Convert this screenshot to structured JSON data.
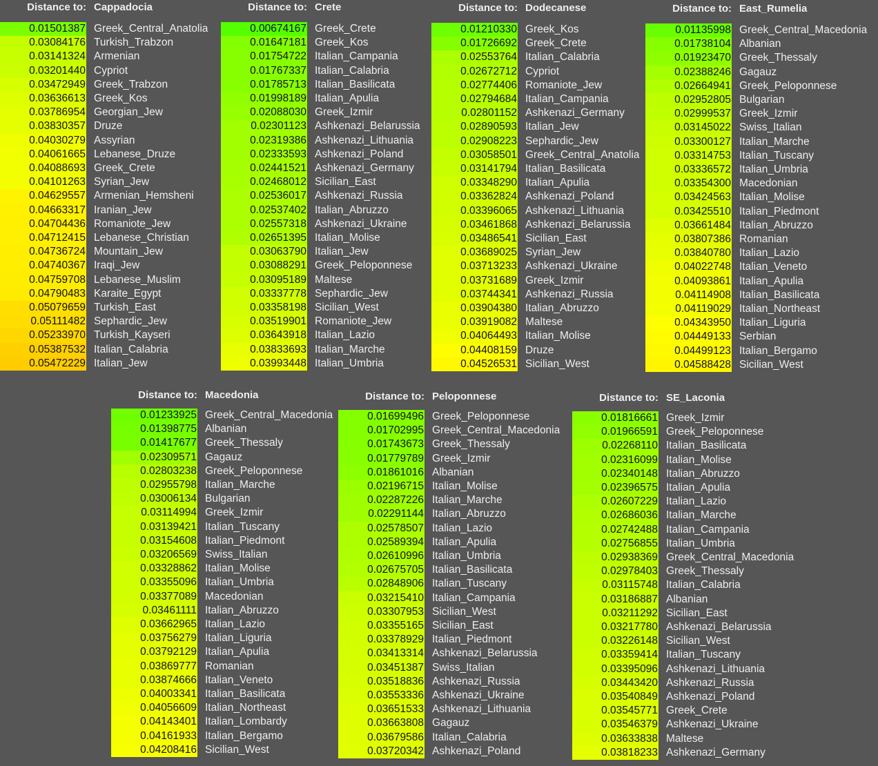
{
  "panels": [
    {
      "label": "Distance to:",
      "target": "Cappadocia",
      "rows": [
        [
          "0.01501387",
          "Greek_Central_Anatolia"
        ],
        [
          "0.03084176",
          "Turkish_Trabzon"
        ],
        [
          "0.03141324",
          "Armenian"
        ],
        [
          "0.03201440",
          "Cypriot"
        ],
        [
          "0.03472949",
          "Greek_Trabzon"
        ],
        [
          "0.03636613",
          "Greek_Kos"
        ],
        [
          "0.03786954",
          "Georgian_Jew"
        ],
        [
          "0.03830357",
          "Druze"
        ],
        [
          "0.04030279",
          "Assyrian"
        ],
        [
          "0.04061665",
          "Lebanese_Druze"
        ],
        [
          "0.04088693",
          "Greek_Crete"
        ],
        [
          "0.04101263",
          "Syrian_Jew"
        ],
        [
          "0.04629557",
          "Armenian_Hemsheni"
        ],
        [
          "0.04663317",
          "Iranian_Jew"
        ],
        [
          "0.04704436",
          "Romaniote_Jew"
        ],
        [
          "0.04712415",
          "Lebanese_Christian"
        ],
        [
          "0.04736724",
          "Mountain_Jew"
        ],
        [
          "0.04740367",
          "Iraqi_Jew"
        ],
        [
          "0.04759708",
          "Lebanese_Muslim"
        ],
        [
          "0.04790483",
          "Karaite_Egypt"
        ],
        [
          "0.05079659",
          "Turkish_East"
        ],
        [
          "0.05111482",
          "Sephardic_Jew"
        ],
        [
          "0.05233970",
          "Turkish_Kayseri"
        ],
        [
          "0.05387532",
          "Italian_Calabria"
        ],
        [
          "0.05472229",
          "Italian_Jew"
        ]
      ]
    },
    {
      "label": "Distance to:",
      "target": "Crete",
      "rows": [
        [
          "0.00674167",
          "Greek_Crete"
        ],
        [
          "0.01647181",
          "Greek_Kos"
        ],
        [
          "0.01754722",
          "Italian_Campania"
        ],
        [
          "0.01767337",
          "Italian_Calabria"
        ],
        [
          "0.01785713",
          "Italian_Basilicata"
        ],
        [
          "0.01998189",
          "Italian_Apulia"
        ],
        [
          "0.02088030",
          "Greek_Izmir"
        ],
        [
          "0.02301123",
          "Ashkenazi_Belarussia"
        ],
        [
          "0.02319386",
          "Ashkenazi_Lithuania"
        ],
        [
          "0.02333593",
          "Ashkenazi_Poland"
        ],
        [
          "0.02441521",
          "Ashkenazi_Germany"
        ],
        [
          "0.02468012",
          "Sicilian_East"
        ],
        [
          "0.02536017",
          "Ashkenazi_Russia"
        ],
        [
          "0.02537402",
          "Italian_Abruzzo"
        ],
        [
          "0.02557318",
          "Ashkenazi_Ukraine"
        ],
        [
          "0.02651395",
          "Italian_Molise"
        ],
        [
          "0.03063790",
          "Italian_Jew"
        ],
        [
          "0.03088291",
          "Greek_Peloponnese"
        ],
        [
          "0.03095189",
          "Maltese"
        ],
        [
          "0.03337778",
          "Sephardic_Jew"
        ],
        [
          "0.03358198",
          "Sicilian_West"
        ],
        [
          "0.03519901",
          "Romaniote_Jew"
        ],
        [
          "0.03643918",
          "Italian_Lazio"
        ],
        [
          "0.03833693",
          "Italian_Marche"
        ],
        [
          "0.03993448",
          "Italian_Umbria"
        ]
      ]
    },
    {
      "label": "Distance to:",
      "target": "Dodecanese",
      "rows": [
        [
          "0.01210330",
          "Greek_Kos"
        ],
        [
          "0.01726692",
          "Greek_Crete"
        ],
        [
          "0.02553764",
          "Italian_Calabria"
        ],
        [
          "0.02672712",
          "Cypriot"
        ],
        [
          "0.02774406",
          "Romaniote_Jew"
        ],
        [
          "0.02794684",
          "Italian_Campania"
        ],
        [
          "0.02801152",
          "Ashkenazi_Germany"
        ],
        [
          "0.02890593",
          "Italian_Jew"
        ],
        [
          "0.02908223",
          "Sephardic_Jew"
        ],
        [
          "0.03058501",
          "Greek_Central_Anatolia"
        ],
        [
          "0.03141794",
          "Italian_Basilicata"
        ],
        [
          "0.03348290",
          "Italian_Apulia"
        ],
        [
          "0.03362824",
          "Ashkenazi_Poland"
        ],
        [
          "0.03396065",
          "Ashkenazi_Lithuania"
        ],
        [
          "0.03461868",
          "Ashkenazi_Belarussia"
        ],
        [
          "0.03486541",
          "Sicilian_East"
        ],
        [
          "0.03689025",
          "Syrian_Jew"
        ],
        [
          "0.03713233",
          "Ashkenazi_Ukraine"
        ],
        [
          "0.03731689",
          "Greek_Izmir"
        ],
        [
          "0.03744341",
          "Ashkenazi_Russia"
        ],
        [
          "0.03904380",
          "Italian_Abruzzo"
        ],
        [
          "0.03919082",
          "Maltese"
        ],
        [
          "0.04064493",
          "Italian_Molise"
        ],
        [
          "0.04408159",
          "Druze"
        ],
        [
          "0.04526531",
          "Sicilian_West"
        ]
      ]
    },
    {
      "label": "Distance to:",
      "target": "East_Rumelia",
      "rows": [
        [
          "0.01135998",
          "Greek_Central_Macedonia"
        ],
        [
          "0.01738104",
          "Albanian"
        ],
        [
          "0.01923470",
          "Greek_Thessaly"
        ],
        [
          "0.02388246",
          "Gagauz"
        ],
        [
          "0.02664941",
          "Greek_Peloponnese"
        ],
        [
          "0.02952805",
          "Bulgarian"
        ],
        [
          "0.02999537",
          "Greek_Izmir"
        ],
        [
          "0.03145022",
          "Swiss_Italian"
        ],
        [
          "0.03300127",
          "Italian_Marche"
        ],
        [
          "0.03314753",
          "Italian_Tuscany"
        ],
        [
          "0.03336572",
          "Italian_Umbria"
        ],
        [
          "0.03354300",
          "Macedonian"
        ],
        [
          "0.03424563",
          "Italian_Molise"
        ],
        [
          "0.03425510",
          "Italian_Piedmont"
        ],
        [
          "0.03661484",
          "Italian_Abruzzo"
        ],
        [
          "0.03807386",
          "Romanian"
        ],
        [
          "0.03840780",
          "Italian_Lazio"
        ],
        [
          "0.04022748",
          "Italian_Veneto"
        ],
        [
          "0.04093861",
          "Italian_Apulia"
        ],
        [
          "0.04114908",
          "Italian_Basilicata"
        ],
        [
          "0.04119029",
          "Italian_Northeast"
        ],
        [
          "0.04343950",
          "Italian_Liguria"
        ],
        [
          "0.04449133",
          "Serbian"
        ],
        [
          "0.04499123",
          "Italian_Bergamo"
        ],
        [
          "0.04588428",
          "Sicilian_West"
        ]
      ]
    },
    {
      "label": "Distance to:",
      "target": "Macedonia",
      "rows": [
        [
          "0.01233925",
          "Greek_Central_Macedonia"
        ],
        [
          "0.01398775",
          "Albanian"
        ],
        [
          "0.01417677",
          "Greek_Thessaly"
        ],
        [
          "0.02309571",
          "Gagauz"
        ],
        [
          "0.02803238",
          "Greek_Peloponnese"
        ],
        [
          "0.02955798",
          "Italian_Marche"
        ],
        [
          "0.03006134",
          "Bulgarian"
        ],
        [
          "0.03114994",
          "Greek_Izmir"
        ],
        [
          "0.03139421",
          "Italian_Tuscany"
        ],
        [
          "0.03154608",
          "Italian_Piedmont"
        ],
        [
          "0.03206569",
          "Swiss_Italian"
        ],
        [
          "0.03328862",
          "Italian_Molise"
        ],
        [
          "0.03355096",
          "Italian_Umbria"
        ],
        [
          "0.03377089",
          "Macedonian"
        ],
        [
          "0.03461111",
          "Italian_Abruzzo"
        ],
        [
          "0.03662965",
          "Italian_Lazio"
        ],
        [
          "0.03756279",
          "Italian_Liguria"
        ],
        [
          "0.03792129",
          "Italian_Apulia"
        ],
        [
          "0.03869777",
          "Romanian"
        ],
        [
          "0.03874666",
          "Italian_Veneto"
        ],
        [
          "0.04003341",
          "Italian_Basilicata"
        ],
        [
          "0.04056609",
          "Italian_Northeast"
        ],
        [
          "0.04143401",
          "Italian_Lombardy"
        ],
        [
          "0.04161933",
          "Italian_Bergamo"
        ],
        [
          "0.04208416",
          "Sicilian_West"
        ]
      ]
    },
    {
      "label": "Distance to:",
      "target": "Peloponnese",
      "rows": [
        [
          "0.01699496",
          "Greek_Peloponnese"
        ],
        [
          "0.01702995",
          "Greek_Central_Macedonia"
        ],
        [
          "0.01743673",
          "Greek_Thessaly"
        ],
        [
          "0.01779789",
          "Greek_Izmir"
        ],
        [
          "0.01861016",
          "Albanian"
        ],
        [
          "0.02196715",
          "Italian_Molise"
        ],
        [
          "0.02287226",
          "Italian_Marche"
        ],
        [
          "0.02291144",
          "Italian_Abruzzo"
        ],
        [
          "0.02578507",
          "Italian_Lazio"
        ],
        [
          "0.02589394",
          "Italian_Apulia"
        ],
        [
          "0.02610996",
          "Italian_Umbria"
        ],
        [
          "0.02675705",
          "Italian_Basilicata"
        ],
        [
          "0.02848906",
          "Italian_Tuscany"
        ],
        [
          "0.03215410",
          "Italian_Campania"
        ],
        [
          "0.03307953",
          "Sicilian_West"
        ],
        [
          "0.03355165",
          "Sicilian_East"
        ],
        [
          "0.03378929",
          "Italian_Piedmont"
        ],
        [
          "0.03413314",
          "Ashkenazi_Belarussia"
        ],
        [
          "0.03451387",
          "Swiss_Italian"
        ],
        [
          "0.03518836",
          "Ashkenazi_Russia"
        ],
        [
          "0.03553336",
          "Ashkenazi_Ukraine"
        ],
        [
          "0.03651533",
          "Ashkenazi_Lithuania"
        ],
        [
          "0.03663808",
          "Gagauz"
        ],
        [
          "0.03679586",
          "Italian_Calabria"
        ],
        [
          "0.03720342",
          "Ashkenazi_Poland"
        ]
      ]
    },
    {
      "label": "Distance to:",
      "target": "SE_Laconia",
      "rows": [
        [
          "0.01816661",
          "Greek_Izmir"
        ],
        [
          "0.01966591",
          "Greek_Peloponnese"
        ],
        [
          "0.02268110",
          "Italian_Basilicata"
        ],
        [
          "0.02316099",
          "Italian_Molise"
        ],
        [
          "0.02340148",
          "Italian_Abruzzo"
        ],
        [
          "0.02396575",
          "Italian_Apulia"
        ],
        [
          "0.02607229",
          "Italian_Lazio"
        ],
        [
          "0.02686036",
          "Italian_Marche"
        ],
        [
          "0.02742488",
          "Italian_Campania"
        ],
        [
          "0.02756855",
          "Italian_Umbria"
        ],
        [
          "0.02938369",
          "Greek_Central_Macedonia"
        ],
        [
          "0.02978403",
          "Greek_Thessaly"
        ],
        [
          "0.03115748",
          "Italian_Calabria"
        ],
        [
          "0.03186887",
          "Albanian"
        ],
        [
          "0.03211292",
          "Sicilian_East"
        ],
        [
          "0.03217780",
          "Ashkenazi_Belarussia"
        ],
        [
          "0.03226148",
          "Sicilian_West"
        ],
        [
          "0.03359414",
          "Italian_Tuscany"
        ],
        [
          "0.03395096",
          "Ashkenazi_Lithuania"
        ],
        [
          "0.03443420",
          "Ashkenazi_Russia"
        ],
        [
          "0.03540849",
          "Ashkenazi_Poland"
        ],
        [
          "0.03545771",
          "Greek_Crete"
        ],
        [
          "0.03546379",
          "Ashkenazi_Ukraine"
        ],
        [
          "0.03633838",
          "Maltese"
        ],
        [
          "0.03818233",
          "Ashkenazi_Germany"
        ]
      ]
    }
  ]
}
